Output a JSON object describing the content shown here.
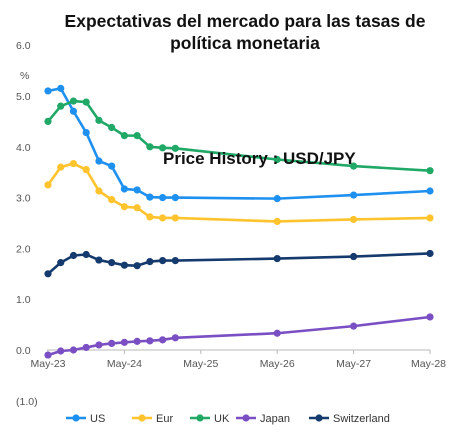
{
  "chart_data": {
    "type": "line",
    "title": "Expectativas del mercado para las tasas de política monetaria",
    "ylabel": "%",
    "annotation": "Price History : USD/JPY",
    "ylim": [
      -1.0,
      6.0
    ],
    "yticks": [
      "6.0",
      "5.0",
      "4.0",
      "3.0",
      "2.0",
      "1.0",
      "0.0",
      "(1.0)"
    ],
    "ytick_values": [
      6,
      5,
      4,
      3,
      2,
      1,
      0,
      -1
    ],
    "xticks": [
      "May-23",
      "May-24",
      "May-25",
      "May-26",
      "May-27",
      "May-28"
    ],
    "xtick_values": [
      0,
      12,
      24,
      36,
      48,
      60
    ],
    "grid": false,
    "legend_position": "bottom",
    "x": [
      0,
      2,
      4,
      6,
      8,
      10,
      12,
      14,
      16,
      18,
      20,
      36,
      48,
      60
    ],
    "series": [
      {
        "name": "US",
        "color": "#1E90F0",
        "x": [
          0,
          2,
          4,
          6,
          8,
          10,
          12,
          14,
          16,
          18,
          20,
          36,
          48,
          60
        ],
        "values": [
          5.1,
          5.15,
          4.7,
          4.28,
          3.72,
          3.62,
          3.17,
          3.15,
          3.01,
          3.0,
          3.0,
          2.98,
          3.05,
          3.13
        ]
      },
      {
        "name": "Eur",
        "color": "#FFC32E",
        "x": [
          0,
          2,
          4,
          6,
          8,
          10,
          12,
          14,
          16,
          18,
          20,
          36,
          48,
          60
        ],
        "values": [
          3.25,
          3.6,
          3.67,
          3.55,
          3.13,
          2.96,
          2.82,
          2.8,
          2.62,
          2.6,
          2.6,
          2.53,
          2.57,
          2.6
        ]
      },
      {
        "name": "UK",
        "color": "#1FA866",
        "x": [
          0,
          2,
          4,
          6,
          8,
          10,
          12,
          14,
          16,
          18,
          20,
          36,
          48,
          60
        ],
        "values": [
          4.5,
          4.8,
          4.9,
          4.88,
          4.52,
          4.38,
          4.22,
          4.22,
          4.0,
          3.98,
          3.97,
          3.75,
          3.62,
          3.53
        ]
      },
      {
        "name": "Japan",
        "color": "#7B4FC4",
        "x": [
          0,
          2,
          4,
          6,
          8,
          10,
          12,
          14,
          16,
          18,
          20,
          36,
          48,
          60
        ],
        "values": [
          -0.1,
          -0.02,
          0.0,
          0.05,
          0.1,
          0.13,
          0.15,
          0.17,
          0.18,
          0.2,
          0.24,
          0.33,
          0.47,
          0.65
        ]
      },
      {
        "name": "Switzerland",
        "color": "#153A6E",
        "x": [
          0,
          2,
          4,
          6,
          8,
          10,
          12,
          14,
          16,
          18,
          20,
          36,
          48,
          60
        ],
        "values": [
          1.5,
          1.72,
          1.86,
          1.88,
          1.77,
          1.72,
          1.67,
          1.66,
          1.74,
          1.76,
          1.76,
          1.8,
          1.84,
          1.9
        ]
      }
    ]
  }
}
